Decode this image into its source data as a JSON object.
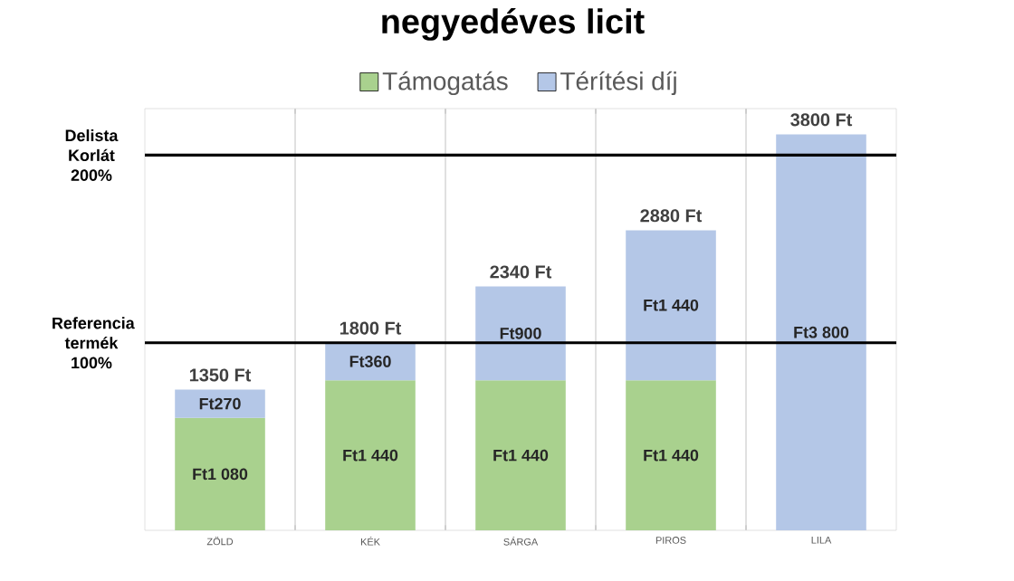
{
  "chart_data": {
    "type": "bar",
    "stacked": true,
    "title": "negyedéves licit",
    "categories": [
      "ZÖLD",
      "KÉK",
      "SÁRGA",
      "PIROS",
      "LILA"
    ],
    "series": [
      {
        "name": "Támogatás",
        "color": "#a9d18e",
        "values": [
          1080,
          1440,
          1440,
          1440,
          null
        ],
        "value_labels": [
          "Ft1 080",
          "Ft1 440",
          "Ft1 440",
          "Ft1 440",
          null
        ]
      },
      {
        "name": "Térítési díj",
        "color": "#b4c7e7",
        "values": [
          270,
          360,
          900,
          1440,
          3800
        ],
        "value_labels": [
          "Ft270",
          "Ft360",
          "Ft900",
          "Ft1 440",
          "Ft3 800"
        ]
      }
    ],
    "totals": [
      "1350 Ft",
      "1800 Ft",
      "2340 Ft",
      "2880 Ft",
      "3800 Ft"
    ],
    "ref_lines": [
      {
        "axis": "y",
        "value": 1800,
        "label": "Referencia termék 100%",
        "color": "#000000"
      },
      {
        "axis": "y",
        "value": 3600,
        "label": "Delista Korlát 200%",
        "color": "#000000"
      }
    ],
    "grid": "x",
    "legend": "top",
    "tick_labels": "x"
  }
}
